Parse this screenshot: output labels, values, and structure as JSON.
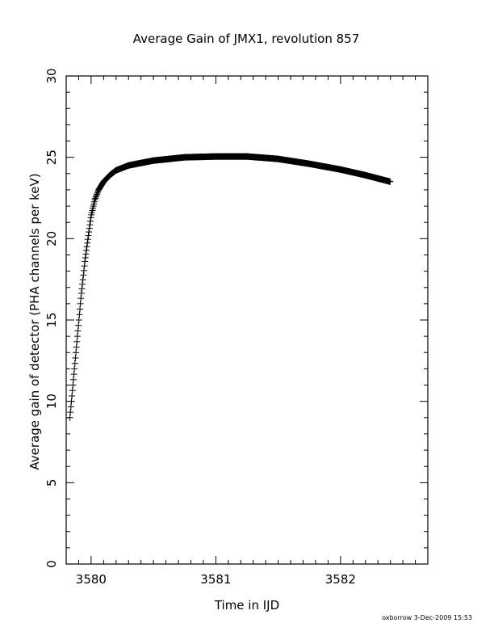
{
  "chart_data": {
    "type": "scatter",
    "title": "Average Gain of JMX1, revolution 857",
    "xlabel": "Time in IJD",
    "ylabel": "Average gain of detector (PHA channels per keV)",
    "xlim": [
      3579.8,
      3582.7
    ],
    "ylim": [
      0,
      30
    ],
    "x_ticks": [
      3580,
      3581,
      3582
    ],
    "y_ticks": [
      0,
      5,
      10,
      15,
      20,
      25,
      30
    ],
    "marker": "plus",
    "color": "#000000",
    "grid": false,
    "x": [
      3579.83,
      3579.86,
      3579.89,
      3579.92,
      3579.95,
      3579.98,
      3580.0,
      3580.03,
      3580.06,
      3580.1,
      3580.15,
      3580.2,
      3580.3,
      3580.5,
      3580.75,
      3581.0,
      3581.25,
      3581.5,
      3581.75,
      3582.0,
      3582.2,
      3582.4
    ],
    "y": [
      9.0,
      11.5,
      14.0,
      16.5,
      18.6,
      20.3,
      21.4,
      22.4,
      23.0,
      23.5,
      23.9,
      24.2,
      24.5,
      24.8,
      25.0,
      25.05,
      25.05,
      24.9,
      24.6,
      24.25,
      23.9,
      23.5
    ],
    "footer": "oxborrow  3-Dec-2009 15:53"
  }
}
